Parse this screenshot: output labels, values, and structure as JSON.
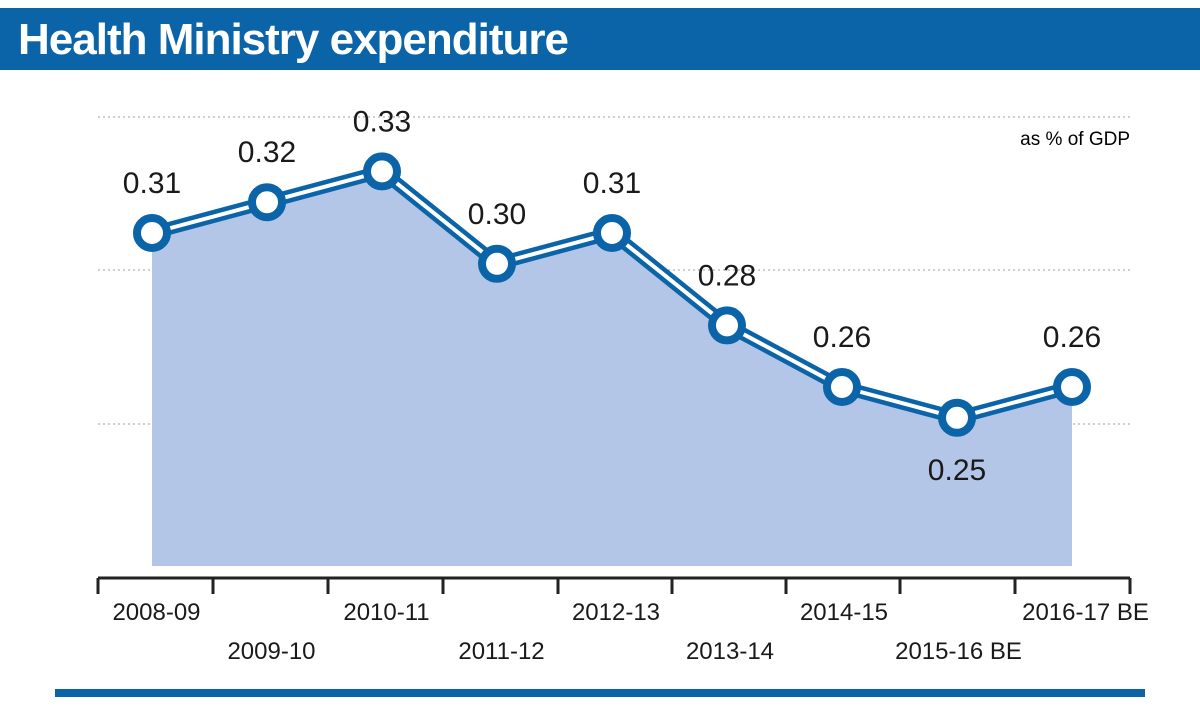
{
  "title": "Health Ministry expenditure",
  "colors": {
    "brand": "#0b64a8",
    "area_fill": "#b4c6e7",
    "line": "#0b64a8",
    "marker_fill": "#ffffff",
    "grid": "#bfbfbf",
    "text": "#1a1a1a"
  },
  "chart_data": {
    "type": "area",
    "title": "Health Ministry expenditure",
    "unit_label": "as % of GDP",
    "categories": [
      "2008-09",
      "2009-10",
      "2010-11",
      "2011-12",
      "2012-13",
      "2013-14",
      "2014-15",
      "2015-16 BE",
      "2016-17 BE"
    ],
    "series": [
      {
        "values": [
          0.31,
          0.32,
          0.33,
          0.3,
          0.31,
          0.28,
          0.26,
          0.25,
          0.26
        ],
        "labels": [
          "0.31",
          "0.32",
          "0.33",
          "0.30",
          "0.31",
          "0.28",
          "0.26",
          "0.25",
          "0.26"
        ]
      }
    ],
    "grid": true,
    "legend": "none"
  }
}
